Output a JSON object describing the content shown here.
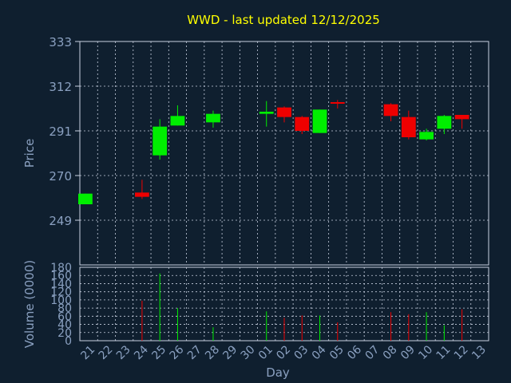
{
  "chart_data": {
    "type": "candlestick",
    "title": "WWD - last updated 12/12/2025",
    "xlabel": "Day",
    "price": {
      "ylabel": "Price",
      "ylim": [
        228,
        333
      ],
      "yticks": [
        "333",
        "312",
        "291",
        "270",
        "249"
      ],
      "grid": true
    },
    "volume": {
      "ylabel": "Volume (0000)",
      "ylim": [
        0,
        180
      ],
      "yticks": [
        "180",
        "160",
        "140",
        "120",
        "100",
        "80",
        "60",
        "40",
        "20",
        "0"
      ],
      "grid": true
    },
    "x_ticks": [
      "21",
      "22",
      "23",
      "24",
      "25",
      "26",
      "27",
      "28",
      "29",
      "30",
      "01",
      "02",
      "03",
      "04",
      "05",
      "06",
      "07",
      "08",
      "09",
      "10",
      "11",
      "12",
      "13"
    ],
    "candles": [
      {
        "day": "21",
        "open": 256.5,
        "high": 261.5,
        "low": 256.5,
        "close": 261.5,
        "volume": 0
      },
      {
        "day": "24",
        "open": 262.0,
        "high": 268.0,
        "low": 259.0,
        "close": 260.0,
        "volume": 98
      },
      {
        "day": "25",
        "open": 279.5,
        "high": 296.5,
        "low": 277.5,
        "close": 293.0,
        "volume": 165
      },
      {
        "day": "26",
        "open": 293.5,
        "high": 303.0,
        "low": 293.5,
        "close": 298.0,
        "volume": 80
      },
      {
        "day": "28",
        "open": 295.0,
        "high": 300.5,
        "low": 292.5,
        "close": 299.0,
        "volume": 33
      },
      {
        "day": "01",
        "open": 299.0,
        "high": 305.0,
        "low": 293.0,
        "close": 300.0,
        "volume": 72
      },
      {
        "day": "02",
        "open": 302.0,
        "high": 302.5,
        "low": 295.0,
        "close": 297.5,
        "volume": 56
      },
      {
        "day": "03",
        "open": 297.5,
        "high": 298.0,
        "low": 289.5,
        "close": 291.0,
        "volume": 62
      },
      {
        "day": "04",
        "open": 290.0,
        "high": 301.0,
        "low": 290.0,
        "close": 301.0,
        "volume": 62
      },
      {
        "day": "05",
        "open": 304.5,
        "high": 305.5,
        "low": 301.5,
        "close": 304.0,
        "volume": 45
      },
      {
        "day": "08",
        "open": 303.5,
        "high": 304.0,
        "low": 295.5,
        "close": 298.0,
        "volume": 70
      },
      {
        "day": "09",
        "open": 297.5,
        "high": 300.5,
        "low": 287.0,
        "close": 288.0,
        "volume": 65
      },
      {
        "day": "10",
        "open": 287.0,
        "high": 292.0,
        "low": 286.5,
        "close": 290.5,
        "volume": 70
      },
      {
        "day": "11",
        "open": 292.0,
        "high": 298.5,
        "low": 289.5,
        "close": 298.0,
        "volume": 38
      },
      {
        "day": "12",
        "open": 298.5,
        "high": 298.5,
        "low": 292.0,
        "close": 296.5,
        "volume": 77
      }
    ],
    "colors": {
      "up": "#00ee00",
      "down": "#ee0000",
      "title": "#ffff00",
      "axis_text": "#8aa0c0",
      "frame": "#c8d0e0",
      "grid": "#c8d0e0",
      "background": "#0f1f2f"
    }
  }
}
